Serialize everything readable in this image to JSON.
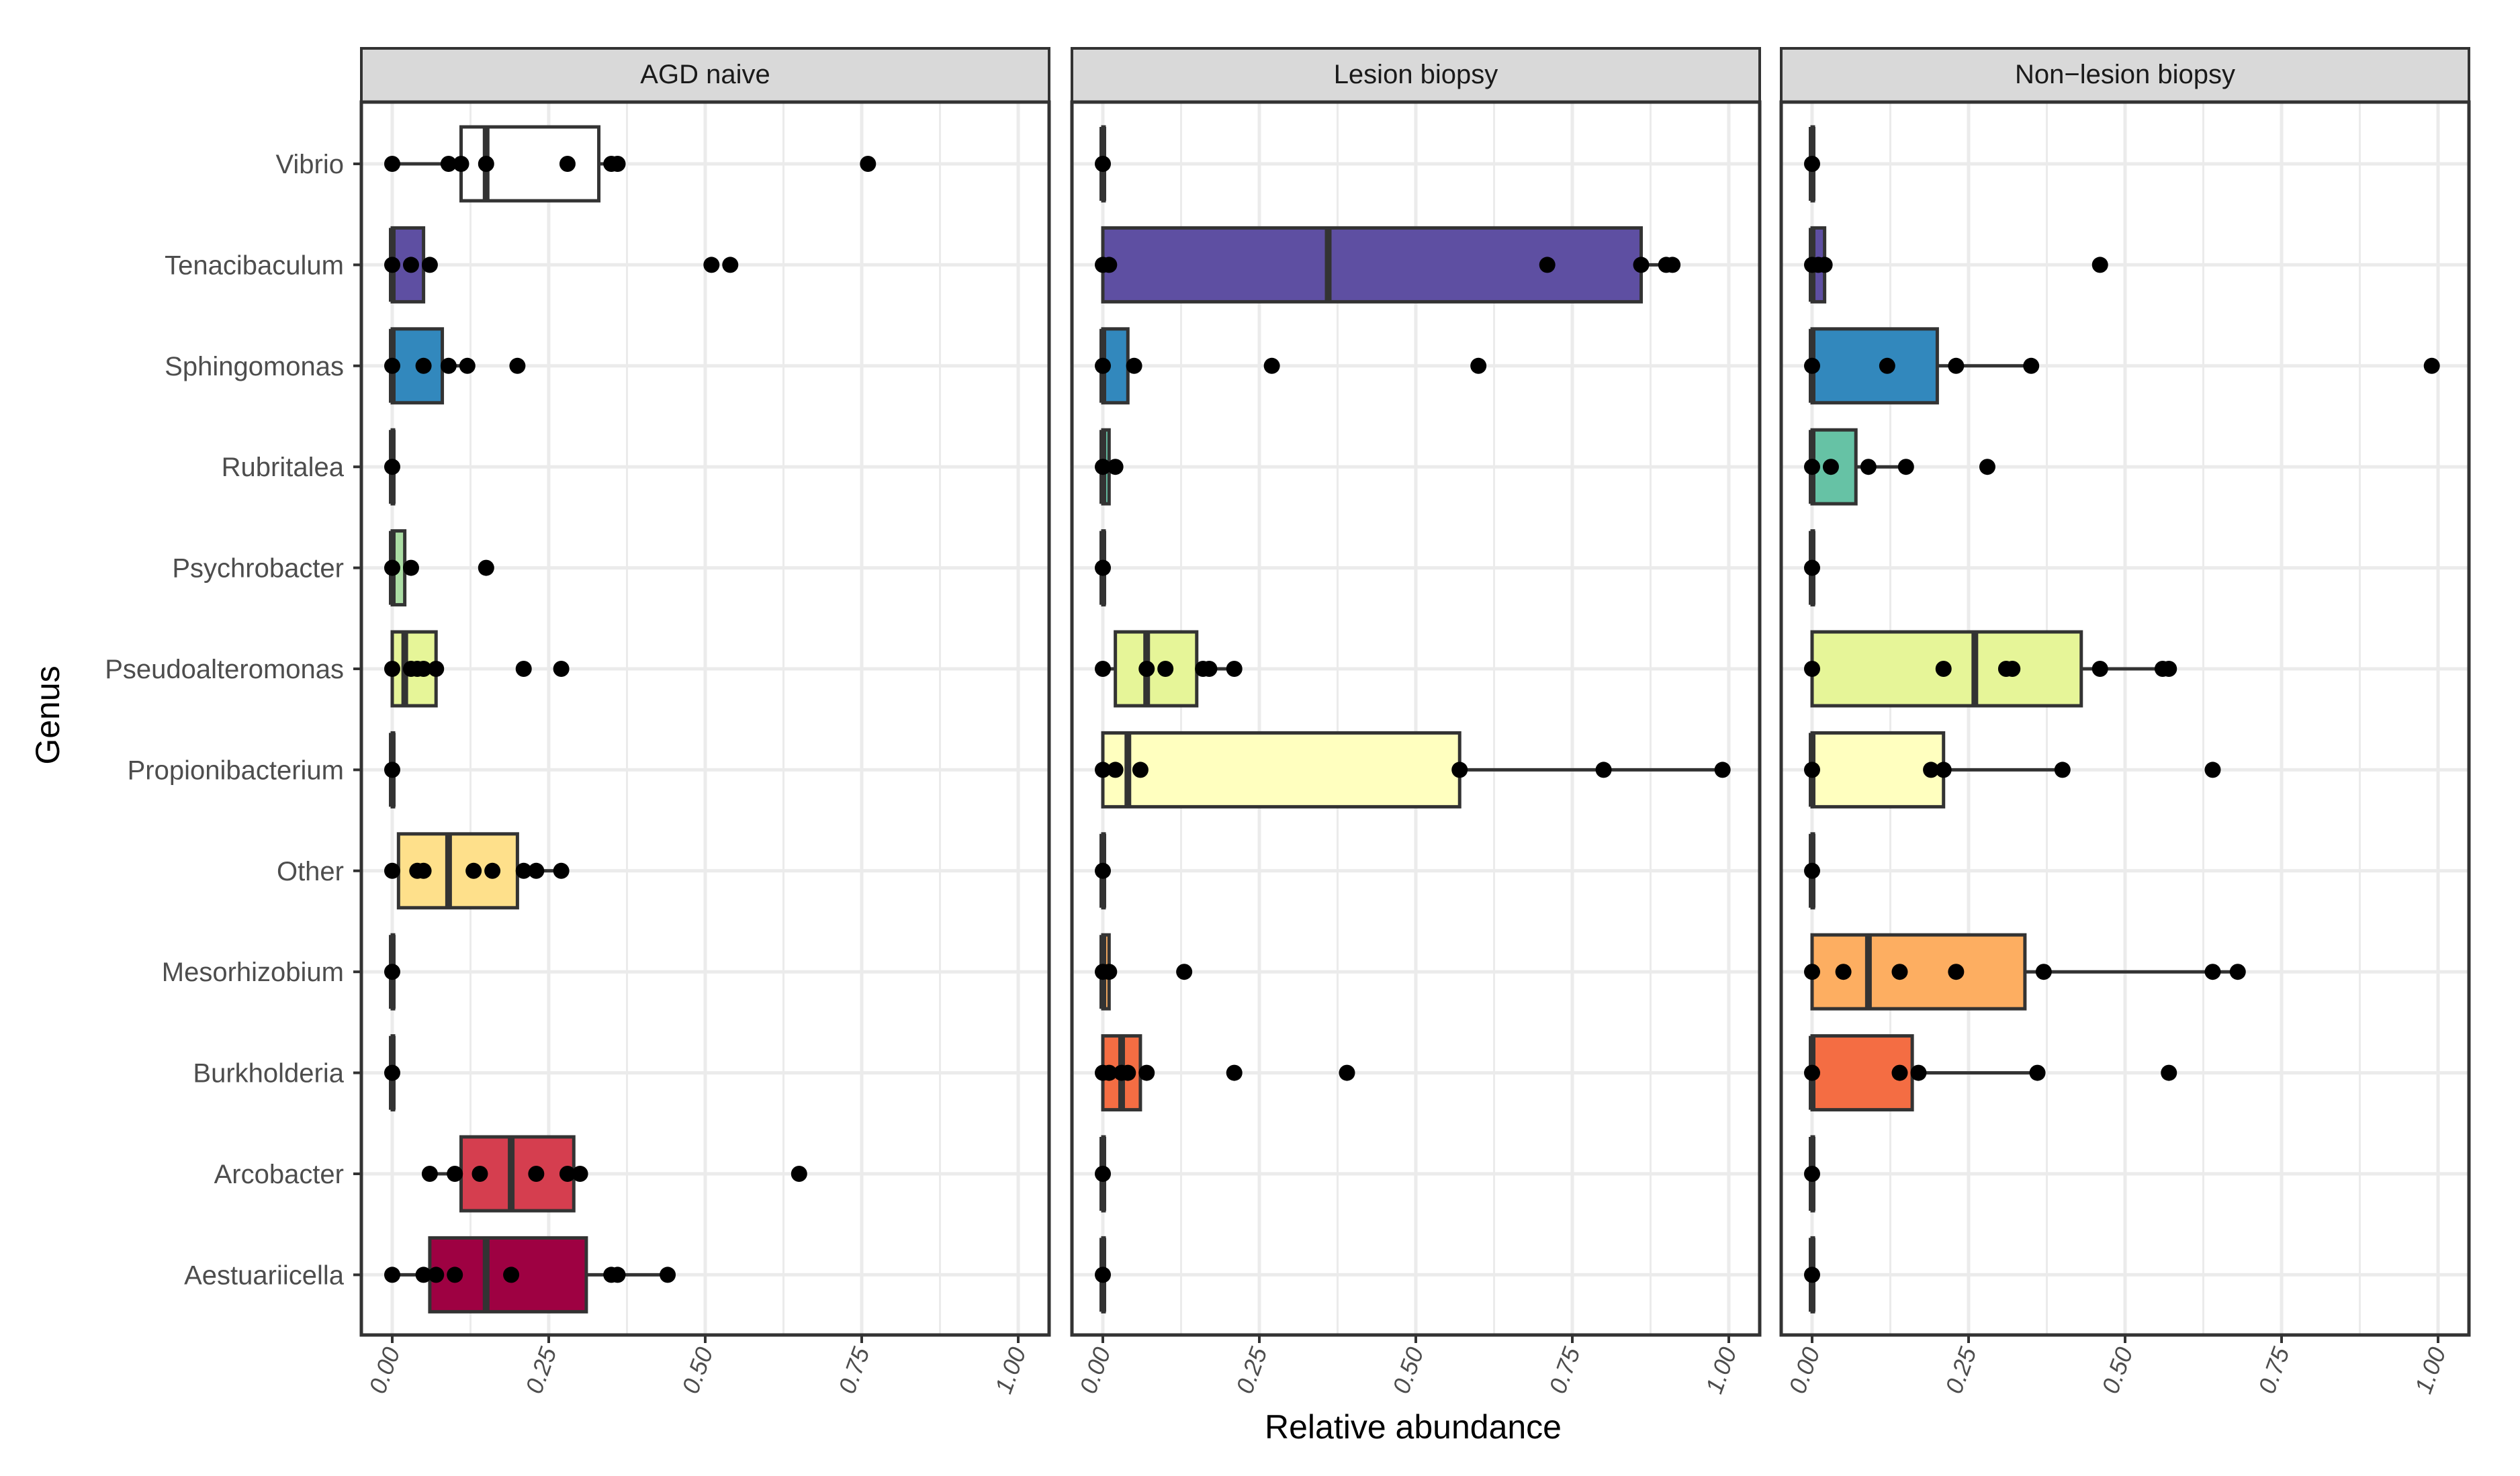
{
  "chart_data": {
    "type": "boxplot",
    "orientation": "horizontal",
    "xlabel": "Relative abundance",
    "ylabel": "Genus",
    "xlim": [
      0,
      1
    ],
    "x_ticks": [
      "0.00",
      "0.25",
      "0.50",
      "0.75",
      "1.00"
    ],
    "categories": [
      "Vibrio",
      "Tenacibaculum",
      "Sphingomonas",
      "Rubritalea",
      "Psychrobacter",
      "Pseudoalteromonas",
      "Propionibacterium",
      "Other",
      "Mesorhizobium",
      "Burkholderia",
      "Arcobacter",
      "Aestuariicella"
    ],
    "colors": {
      "Vibrio": "#FFFFFF",
      "Tenacibaculum": "#5E4FA2",
      "Sphingomonas": "#3288BD",
      "Rubritalea": "#66C2A5",
      "Psychrobacter": "#ABDDA4",
      "Pseudoalteromonas": "#E6F598",
      "Propionibacterium": "#FFFFBF",
      "Other": "#FEE08B",
      "Mesorhizobium": "#FDAE61",
      "Burkholderia": "#F46D43",
      "Arcobacter": "#D53E4F",
      "Aestuariicella": "#9E0142"
    },
    "panels": [
      {
        "title": "AGD naive",
        "series": [
          {
            "genus": "Vibrio",
            "whisker": [
              0.0,
              0.35
            ],
            "box": [
              0.11,
              0.33
            ],
            "median": 0.15,
            "points": [
              0.0,
              0.09,
              0.11,
              0.15,
              0.28,
              0.35,
              0.36,
              0.76
            ]
          },
          {
            "genus": "Tenacibaculum",
            "whisker": [
              0.0,
              0.05
            ],
            "box": [
              0.0,
              0.05
            ],
            "median": 0.0,
            "points": [
              0.0,
              0.03,
              0.06,
              0.51,
              0.54
            ]
          },
          {
            "genus": "Sphingomonas",
            "whisker": [
              0.0,
              0.12
            ],
            "box": [
              0.0,
              0.08
            ],
            "median": 0.0,
            "points": [
              0.0,
              0.05,
              0.09,
              0.12,
              0.2
            ]
          },
          {
            "genus": "Rubritalea",
            "whisker": [
              0.0,
              0.0
            ],
            "box": [
              0.0,
              0.0
            ],
            "median": 0.0,
            "points": [
              0.0
            ]
          },
          {
            "genus": "Psychrobacter",
            "whisker": [
              0.0,
              0.02
            ],
            "box": [
              0.0,
              0.02
            ],
            "median": 0.0,
            "points": [
              0.0,
              0.03,
              0.15
            ]
          },
          {
            "genus": "Pseudoalteromonas",
            "whisker": [
              0.0,
              0.07
            ],
            "box": [
              0.0,
              0.07
            ],
            "median": 0.02,
            "points": [
              0.0,
              0.03,
              0.04,
              0.05,
              0.07,
              0.21,
              0.27
            ]
          },
          {
            "genus": "Propionibacterium",
            "whisker": [
              0.0,
              0.0
            ],
            "box": [
              0.0,
              0.0
            ],
            "median": 0.0,
            "points": [
              0.0
            ]
          },
          {
            "genus": "Other",
            "whisker": [
              0.0,
              0.27
            ],
            "box": [
              0.01,
              0.2
            ],
            "median": 0.09,
            "points": [
              0.0,
              0.04,
              0.05,
              0.13,
              0.16,
              0.21,
              0.23,
              0.27
            ]
          },
          {
            "genus": "Mesorhizobium",
            "whisker": [
              0.0,
              0.0
            ],
            "box": [
              0.0,
              0.0
            ],
            "median": 0.0,
            "points": [
              0.0
            ]
          },
          {
            "genus": "Burkholderia",
            "whisker": [
              0.0,
              0.0
            ],
            "box": [
              0.0,
              0.0
            ],
            "median": 0.0,
            "points": [
              0.0
            ]
          },
          {
            "genus": "Arcobacter",
            "whisker": [
              0.06,
              0.3
            ],
            "box": [
              0.11,
              0.29
            ],
            "median": 0.19,
            "points": [
              0.06,
              0.1,
              0.14,
              0.23,
              0.28,
              0.3,
              0.65
            ]
          },
          {
            "genus": "Aestuariicella",
            "whisker": [
              0.0,
              0.44
            ],
            "box": [
              0.06,
              0.31
            ],
            "median": 0.15,
            "points": [
              0.0,
              0.05,
              0.07,
              0.1,
              0.19,
              0.35,
              0.36,
              0.44
            ]
          }
        ]
      },
      {
        "title": "Lesion biopsy",
        "series": [
          {
            "genus": "Vibrio",
            "whisker": [
              0.0,
              0.0
            ],
            "box": [
              0.0,
              0.0
            ],
            "median": 0.0,
            "points": [
              0.0
            ]
          },
          {
            "genus": "Tenacibaculum",
            "whisker": [
              0.0,
              0.91
            ],
            "box": [
              0.0,
              0.86
            ],
            "median": 0.36,
            "points": [
              0.0,
              0.01,
              0.71,
              0.86,
              0.9,
              0.91
            ]
          },
          {
            "genus": "Sphingomonas",
            "whisker": [
              0.0,
              0.05
            ],
            "box": [
              0.0,
              0.04
            ],
            "median": 0.0,
            "points": [
              0.0,
              0.05,
              0.27,
              0.6
            ]
          },
          {
            "genus": "Rubritalea",
            "whisker": [
              0.0,
              0.02
            ],
            "box": [
              0.0,
              0.01
            ],
            "median": 0.0,
            "points": [
              0.0,
              0.02
            ]
          },
          {
            "genus": "Psychrobacter",
            "whisker": [
              0.0,
              0.0
            ],
            "box": [
              0.0,
              0.0
            ],
            "median": 0.0,
            "points": [
              0.0
            ]
          },
          {
            "genus": "Pseudoalteromonas",
            "whisker": [
              0.0,
              0.21
            ],
            "box": [
              0.02,
              0.15
            ],
            "median": 0.07,
            "points": [
              0.0,
              0.07,
              0.1,
              0.16,
              0.17,
              0.21
            ]
          },
          {
            "genus": "Propionibacterium",
            "whisker": [
              0.0,
              0.99
            ],
            "box": [
              0.0,
              0.57
            ],
            "median": 0.04,
            "points": [
              0.0,
              0.02,
              0.06,
              0.57,
              0.8,
              0.99
            ]
          },
          {
            "genus": "Other",
            "whisker": [
              0.0,
              0.0
            ],
            "box": [
              0.0,
              0.0
            ],
            "median": 0.0,
            "points": [
              0.0
            ]
          },
          {
            "genus": "Mesorhizobium",
            "whisker": [
              0.0,
              0.01
            ],
            "box": [
              0.0,
              0.01
            ],
            "median": 0.0,
            "points": [
              0.0,
              0.01,
              0.13
            ]
          },
          {
            "genus": "Burkholderia",
            "whisker": [
              0.0,
              0.06
            ],
            "box": [
              0.0,
              0.06
            ],
            "median": 0.03,
            "points": [
              0.0,
              0.01,
              0.03,
              0.04,
              0.07,
              0.21,
              0.39
            ]
          },
          {
            "genus": "Arcobacter",
            "whisker": [
              0.0,
              0.0
            ],
            "box": [
              0.0,
              0.0
            ],
            "median": 0.0,
            "points": [
              0.0
            ]
          },
          {
            "genus": "Aestuariicella",
            "whisker": [
              0.0,
              0.0
            ],
            "box": [
              0.0,
              0.0
            ],
            "median": 0.0,
            "points": [
              0.0
            ]
          }
        ]
      },
      {
        "title": "Non−lesion biopsy",
        "series": [
          {
            "genus": "Vibrio",
            "whisker": [
              0.0,
              0.0
            ],
            "box": [
              0.0,
              0.0
            ],
            "median": 0.0,
            "points": [
              0.0
            ]
          },
          {
            "genus": "Tenacibaculum",
            "whisker": [
              0.0,
              0.02
            ],
            "box": [
              0.0,
              0.02
            ],
            "median": 0.0,
            "points": [
              0.0,
              0.01,
              0.02,
              0.46
            ]
          },
          {
            "genus": "Sphingomonas",
            "whisker": [
              0.0,
              0.35
            ],
            "box": [
              0.0,
              0.2
            ],
            "median": 0.0,
            "points": [
              0.0,
              0.12,
              0.23,
              0.35,
              0.99
            ]
          },
          {
            "genus": "Rubritalea",
            "whisker": [
              0.0,
              0.15
            ],
            "box": [
              0.0,
              0.07
            ],
            "median": 0.0,
            "points": [
              0.0,
              0.03,
              0.09,
              0.15,
              0.28
            ]
          },
          {
            "genus": "Psychrobacter",
            "whisker": [
              0.0,
              0.0
            ],
            "box": [
              0.0,
              0.0
            ],
            "median": 0.0,
            "points": [
              0.0
            ]
          },
          {
            "genus": "Pseudoalteromonas",
            "whisker": [
              0.0,
              0.57
            ],
            "box": [
              0.0,
              0.43
            ],
            "median": 0.26,
            "points": [
              0.0,
              0.21,
              0.31,
              0.32,
              0.46,
              0.56,
              0.57
            ]
          },
          {
            "genus": "Propionibacterium",
            "whisker": [
              0.0,
              0.4
            ],
            "box": [
              0.0,
              0.21
            ],
            "median": 0.0,
            "points": [
              0.0,
              0.19,
              0.21,
              0.4,
              0.64
            ]
          },
          {
            "genus": "Other",
            "whisker": [
              0.0,
              0.0
            ],
            "box": [
              0.0,
              0.0
            ],
            "median": 0.0,
            "points": [
              0.0
            ]
          },
          {
            "genus": "Mesorhizobium",
            "whisker": [
              0.0,
              0.68
            ],
            "box": [
              0.0,
              0.34
            ],
            "median": 0.09,
            "points": [
              0.0,
              0.05,
              0.14,
              0.23,
              0.37,
              0.64,
              0.68
            ]
          },
          {
            "genus": "Burkholderia",
            "whisker": [
              0.0,
              0.36
            ],
            "box": [
              0.0,
              0.16
            ],
            "median": 0.0,
            "points": [
              0.0,
              0.14,
              0.17,
              0.36,
              0.57
            ]
          },
          {
            "genus": "Arcobacter",
            "whisker": [
              0.0,
              0.0
            ],
            "box": [
              0.0,
              0.0
            ],
            "median": 0.0,
            "points": [
              0.0
            ]
          },
          {
            "genus": "Aestuariicella",
            "whisker": [
              0.0,
              0.0
            ],
            "box": [
              0.0,
              0.0
            ],
            "median": 0.0,
            "points": [
              0.0
            ]
          }
        ]
      }
    ]
  }
}
